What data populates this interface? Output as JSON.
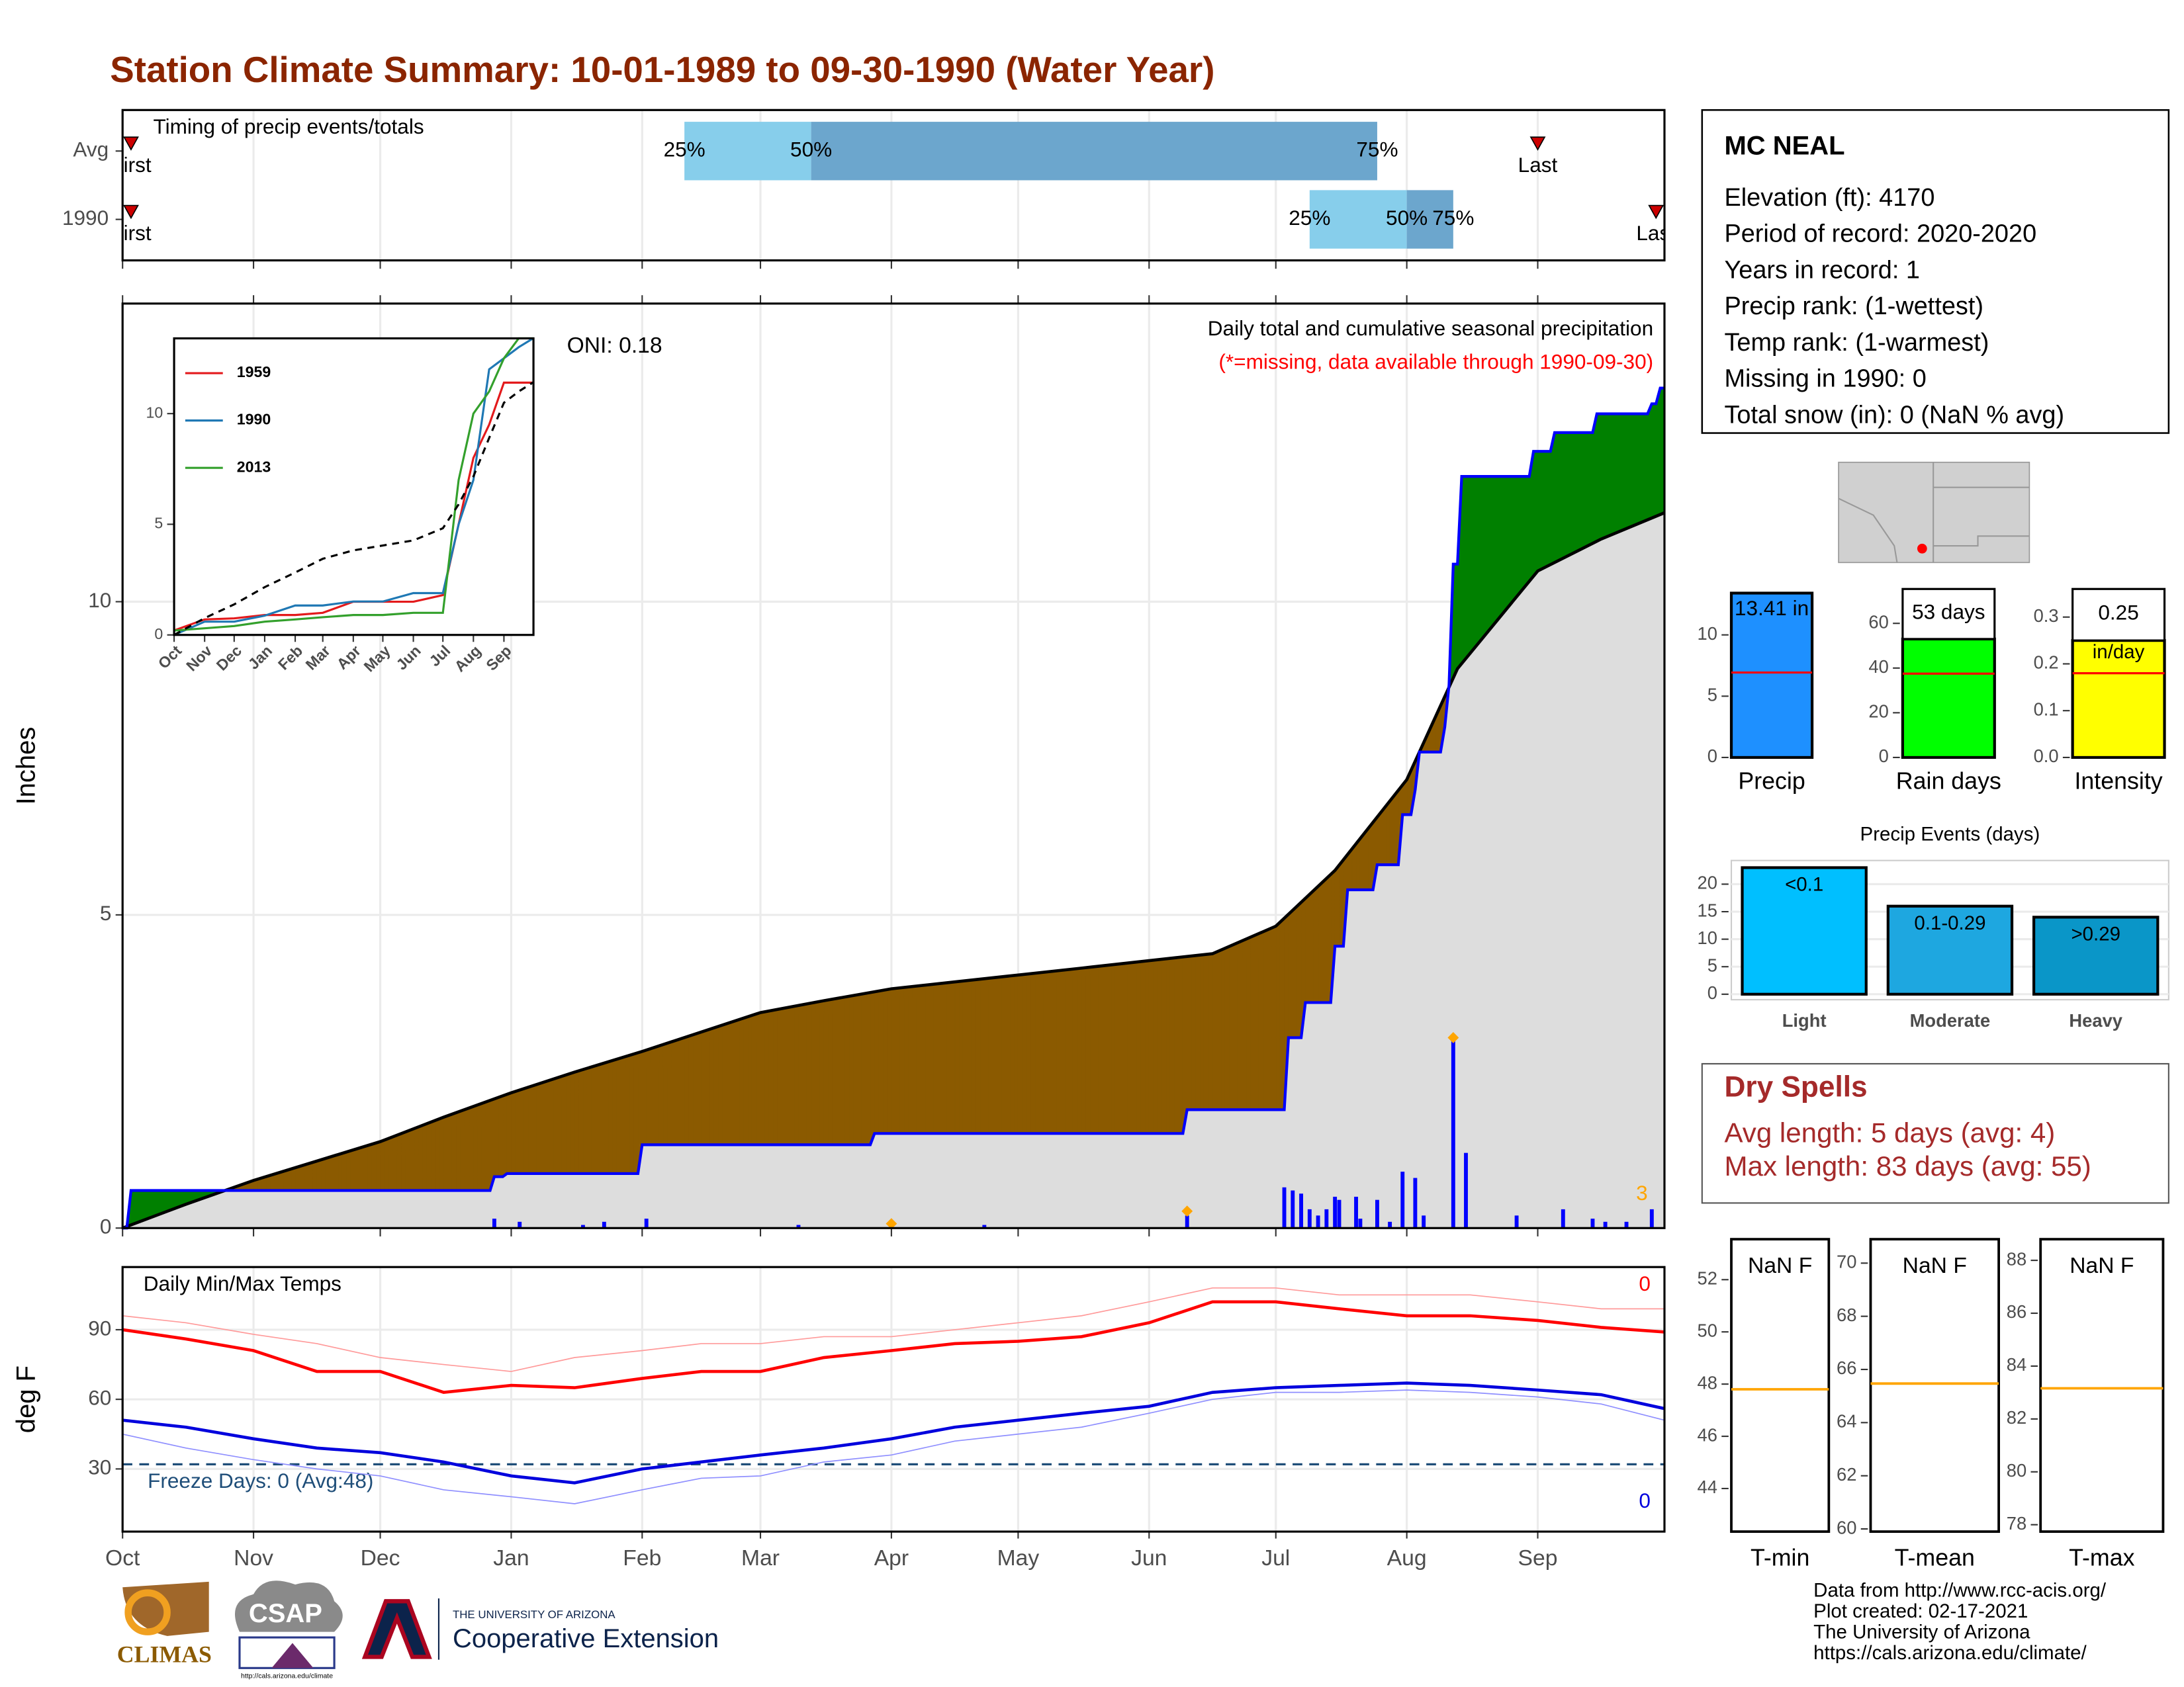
{
  "title": "Station Climate Summary: 10-01-1989 to 09-30-1990 (Water Year)",
  "station": {
    "name": "MC NEAL",
    "lines": [
      "Elevation (ft): 4170",
      "Period of record: 2020-2020",
      "Years in record: 1",
      "Precip rank:  (1-wettest)",
      "Temp rank:  (1-warmest)",
      "Missing in 1990: 0",
      "Total snow (in): 0 (NaN % avg)"
    ]
  },
  "dry_spells": {
    "title": "Dry Spells",
    "lines": [
      "Avg length: 5 days (avg: 4)",
      "Max length: 83 days (avg: 55)"
    ]
  },
  "footer": {
    "credits": [
      "Data from http://www.rcc-acis.org/",
      "Plot created: 02-17-2021",
      "The University of Arizona",
      "https://cals.arizona.edu/climate/"
    ],
    "logos": {
      "climas": "CLIMAS",
      "csap": "CSAP",
      "csap_url": "http://cals.arizona.edu/climate",
      "ua": "THE UNIVERSITY OF ARIZONA",
      "coop": "Cooperative Extension"
    }
  },
  "chart_data": [
    {
      "type": "timing",
      "title": "Timing of precip events/totals",
      "xlim": [
        0,
        365
      ],
      "xticks": [
        0,
        31,
        61,
        92,
        123,
        151,
        182,
        212,
        243,
        273,
        304,
        335
      ],
      "labels": {
        "first": "First",
        "last": "Last",
        "p25": "25%",
        "p50": "50%",
        "p75": "75%"
      },
      "colors": {
        "low": "#87ceeb",
        "high": "#6ca6cd",
        "marker": "#cc0000"
      },
      "rows": [
        {
          "label": "Avg",
          "first": 2,
          "last": 335,
          "p25": 133,
          "p50": 163,
          "p75": 297
        },
        {
          "label": "1990",
          "first": 2,
          "last": 363,
          "p25": 281,
          "p50": 304,
          "p75": 315
        }
      ]
    },
    {
      "type": "area",
      "ylabel": "Inches",
      "oni": "ONI: 0.18",
      "subtitle": "Daily total and cumulative seasonal precipitation",
      "note": "(*=missing, data available through 1990-09-30)",
      "count": 3,
      "xlim": [
        0,
        365
      ],
      "ylim": [
        0,
        14.76
      ],
      "yticks": [
        0,
        5,
        10
      ],
      "grid": true,
      "xticks": [
        0,
        31,
        61,
        92,
        123,
        151,
        182,
        212,
        243,
        273,
        304,
        335
      ],
      "fill_color": "#dddddd",
      "above_color": "#008000",
      "below_color": "#8b5a00",
      "average": {
        "color": "#000000",
        "x": [
          0,
          15,
          31,
          46,
          61,
          76,
          92,
          107,
          123,
          137,
          151,
          166,
          182,
          197,
          212,
          227,
          243,
          258,
          273,
          287,
          304,
          316,
          335,
          350,
          365
        ],
        "values": [
          0,
          0.38,
          0.76,
          1.07,
          1.38,
          1.77,
          2.16,
          2.49,
          2.82,
          3.13,
          3.44,
          3.63,
          3.82,
          3.93,
          4.04,
          4.15,
          4.27,
          4.38,
          4.82,
          5.71,
          7.16,
          8.93,
          10.49,
          11.0,
          11.42
        ]
      },
      "observed": {
        "color": "#0000ff",
        "x": [
          0,
          1,
          2,
          87,
          88,
          90,
          91,
          122,
          123,
          177,
          178,
          251,
          252,
          275,
          276,
          279,
          280,
          286,
          287,
          289,
          290,
          296,
          297,
          302,
          303,
          305,
          306,
          307,
          312,
          313,
          314,
          315,
          316,
          317,
          333,
          334,
          338,
          339,
          348,
          349,
          361,
          362,
          363,
          364,
          365
        ],
        "values": [
          0,
          0,
          0.6,
          0.6,
          0.82,
          0.82,
          0.87,
          0.87,
          1.33,
          1.33,
          1.51,
          1.51,
          1.89,
          1.89,
          3.04,
          3.04,
          3.6,
          3.6,
          4.5,
          4.5,
          5.4,
          5.4,
          5.8,
          5.8,
          6.6,
          6.6,
          7.0,
          7.6,
          7.6,
          8.0,
          8.67,
          10.6,
          10.6,
          12.0,
          12.0,
          12.4,
          12.4,
          12.7,
          12.7,
          13.0,
          13.0,
          13.16,
          13.16,
          13.41,
          13.41
        ]
      },
      "daily": {
        "color": "#0000ff",
        "x": [
          88,
          94,
          109,
          114,
          124,
          160,
          182,
          204,
          252,
          275,
          277,
          279,
          281,
          283,
          285,
          287,
          288,
          292,
          293,
          297,
          300,
          303,
          306,
          308,
          315,
          318,
          330,
          341,
          348,
          351,
          356,
          362
        ],
        "values": [
          0.15,
          0.1,
          0.05,
          0.1,
          0.15,
          0.05,
          0.07,
          0.05,
          0.2,
          0.65,
          0.6,
          0.55,
          0.3,
          0.2,
          0.3,
          0.5,
          0.45,
          0.5,
          0.15,
          0.45,
          0.1,
          0.9,
          0.8,
          0.2,
          3.04,
          1.2,
          0.2,
          0.3,
          0.15,
          0.1,
          0.1,
          0.3
        ]
      },
      "records": {
        "color": "#ffa500",
        "x": [
          182,
          252,
          315
        ],
        "values": [
          0.07,
          0.27,
          3.04
        ]
      }
    },
    {
      "type": "line",
      "xlim": [
        0,
        365
      ],
      "ylim": [
        0,
        13.4
      ],
      "yticks": [
        0,
        5,
        10
      ],
      "xticks": [
        {
          "value": 0,
          "label": "Oct"
        },
        {
          "value": 31,
          "label": "Nov"
        },
        {
          "value": 61,
          "label": "Dec"
        },
        {
          "value": 92,
          "label": "Jan"
        },
        {
          "value": 123,
          "label": "Feb"
        },
        {
          "value": 151,
          "label": "Mar"
        },
        {
          "value": 182,
          "label": "Apr"
        },
        {
          "value": 212,
          "label": "May"
        },
        {
          "value": 243,
          "label": "Jun"
        },
        {
          "value": 273,
          "label": "Jul"
        },
        {
          "value": 304,
          "label": "Aug"
        },
        {
          "value": 335,
          "label": "Sep"
        }
      ],
      "x": [
        0,
        31,
        61,
        92,
        123,
        151,
        182,
        212,
        243,
        273,
        289,
        304,
        320,
        335,
        350,
        365
      ],
      "series": [
        {
          "name": "1959",
          "color": "#e31a1c",
          "values": [
            0.2,
            0.7,
            0.75,
            0.9,
            0.9,
            1.0,
            1.5,
            1.5,
            1.5,
            1.8,
            5,
            8,
            9.5,
            11.4,
            11.4,
            11.4
          ]
        },
        {
          "name": "1990",
          "color": "#1f78b4",
          "values": [
            0,
            0.6,
            0.6,
            0.87,
            1.33,
            1.33,
            1.51,
            1.51,
            1.89,
            1.89,
            5.0,
            7.0,
            12.0,
            12.5,
            13.0,
            13.41
          ]
        },
        {
          "name": "2013",
          "color": "#33a02c",
          "values": [
            0.2,
            0.3,
            0.4,
            0.6,
            0.7,
            0.8,
            0.9,
            0.9,
            1.0,
            1.0,
            7,
            10,
            11,
            12.5,
            13.4,
            13.4
          ]
        },
        {
          "color": "#000000",
          "dash": true,
          "values": [
            0,
            0.76,
            1.38,
            2.16,
            2.82,
            3.44,
            3.82,
            4.04,
            4.27,
            4.82,
            5.9,
            7.16,
            8.9,
            10.49,
            11.0,
            11.42
          ]
        }
      ]
    },
    {
      "type": "bar",
      "categories": [
        "Precip"
      ],
      "values": [
        13.41
      ],
      "value_labels": [
        "13.41 in"
      ],
      "avg": 6.93,
      "color": "#1e90ff",
      "ylim": [
        0,
        13.86
      ],
      "yticks": [
        0,
        5,
        10
      ]
    },
    {
      "type": "bar",
      "categories": [
        "Rain days"
      ],
      "values": [
        53
      ],
      "value_labels": [
        "53 days"
      ],
      "avg": 37.5,
      "color": "#00ff00",
      "ylim": [
        0,
        76
      ],
      "yticks": [
        0,
        20,
        40,
        60
      ]
    },
    {
      "type": "bar",
      "categories": [
        "Intensity"
      ],
      "values": [
        0.25
      ],
      "value_labels": [
        "0.25"
      ],
      "unit": "in/day",
      "avg": 0.18,
      "color": "#ffff00",
      "ylim": [
        0,
        0.363
      ],
      "yticks": [
        {
          "value": 0,
          "label": "0.0"
        },
        0.1,
        0.2,
        0.3
      ]
    },
    {
      "type": "bar",
      "title": "Precip Events (days)",
      "categories": [
        "Light",
        "Moderate",
        "Heavy"
      ],
      "values": [
        23,
        16,
        14
      ],
      "bar_labels": [
        "<0.1",
        "0.1-0.29",
        ">0.29"
      ],
      "colors": [
        "#00bfff",
        "#1ea7e0",
        "#0a96c8"
      ],
      "ylim": [
        -1,
        24.3
      ],
      "yticks": [
        0,
        5,
        10,
        15,
        20
      ],
      "grid": true
    },
    {
      "type": "line",
      "title": "Daily Min/Max Temps",
      "ylabel": "deg F",
      "grid": true,
      "xlim": [
        0,
        365
      ],
      "ylim": [
        3,
        117
      ],
      "yticks": [
        30,
        60,
        90
      ],
      "xticks": [
        {
          "value": 0,
          "label": "Oct"
        },
        {
          "value": 31,
          "label": "Nov"
        },
        {
          "value": 61,
          "label": "Dec"
        },
        {
          "value": 92,
          "label": "Jan"
        },
        {
          "value": 123,
          "label": "Feb"
        },
        {
          "value": 151,
          "label": "Mar"
        },
        {
          "value": 182,
          "label": "Apr"
        },
        {
          "value": 212,
          "label": "May"
        },
        {
          "value": 243,
          "label": "Jun"
        },
        {
          "value": 273,
          "label": "Jul"
        },
        {
          "value": 304,
          "label": "Aug"
        },
        {
          "value": 335,
          "label": "Sep"
        }
      ],
      "freeze": {
        "value": 32,
        "label": "Freeze Days: 0 (Avg:48)",
        "color": "#1f4e79"
      },
      "max_count": 0,
      "min_count": 0,
      "x": [
        0,
        15,
        31,
        46,
        61,
        76,
        92,
        107,
        123,
        137,
        151,
        166,
        182,
        197,
        212,
        227,
        243,
        258,
        273,
        288,
        304,
        319,
        335,
        350,
        365
      ],
      "series": [
        {
          "color": "#ff9a9a",
          "width": 0.8,
          "values": [
            96,
            93,
            88,
            84,
            78,
            75,
            72,
            78,
            81,
            84,
            84,
            87,
            87,
            90,
            93,
            96,
            102,
            108,
            108,
            105,
            105,
            105,
            102,
            99,
            99
          ]
        },
        {
          "color": "#8f8fff",
          "width": 0.8,
          "values": [
            45,
            39,
            34,
            30,
            27,
            21,
            18,
            15,
            21,
            26,
            27,
            33,
            36,
            42,
            45,
            48,
            54,
            60,
            63,
            63,
            64,
            63,
            61,
            58,
            51
          ]
        },
        {
          "color": "#ff0000",
          "width": 2.2,
          "values": [
            90,
            86,
            81,
            72,
            72,
            63,
            66,
            65,
            69,
            72,
            72,
            78,
            81,
            84,
            85,
            87,
            93,
            102,
            102,
            99,
            96,
            96,
            94,
            91,
            89
          ]
        },
        {
          "color": "#0000dd",
          "width": 2.2,
          "values": [
            51,
            48,
            43,
            39,
            37,
            33,
            27,
            24,
            30,
            33,
            36,
            39,
            43,
            48,
            51,
            54,
            57,
            63,
            65,
            66,
            67,
            66,
            64,
            62,
            56
          ]
        }
      ]
    },
    {
      "type": "reference",
      "label": "T-min",
      "value_label": "NaN F",
      "avg": 47.8,
      "color": "#ffa500",
      "ylim": [
        42.35,
        53.55
      ],
      "yticks": [
        44,
        46,
        48,
        50,
        52
      ]
    },
    {
      "type": "reference",
      "label": "T-mean",
      "value_label": "NaN F",
      "avg": 65.47,
      "color": "#ffa500",
      "ylim": [
        59.9,
        70.9
      ],
      "yticks": [
        60,
        62,
        64,
        66,
        68,
        70
      ]
    },
    {
      "type": "reference",
      "label": "T-max",
      "value_label": "NaN F",
      "avg": 83.16,
      "color": "#ffa500",
      "ylim": [
        77.74,
        88.8
      ],
      "yticks": [
        78,
        80,
        82,
        84,
        86,
        88
      ]
    }
  ]
}
